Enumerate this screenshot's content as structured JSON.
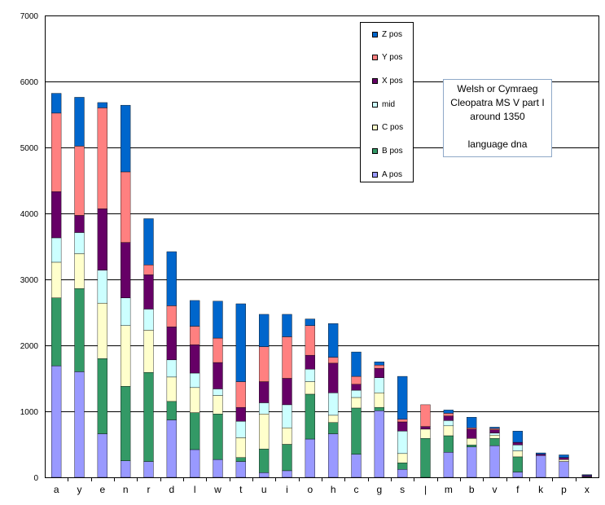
{
  "chart_data": {
    "type": "bar",
    "stacked": true,
    "categories": [
      "a",
      "y",
      "e",
      "n",
      "r",
      "d",
      "l",
      "w",
      "t",
      "u",
      "i",
      "o",
      "h",
      "c",
      "g",
      "s",
      "|",
      "m",
      "b",
      "v",
      "f",
      "k",
      "p",
      "x"
    ],
    "ylim": [
      0,
      7000
    ],
    "yticks": [
      "0",
      "1000",
      "2000",
      "3000",
      "4000",
      "5000",
      "6000",
      "7000"
    ],
    "grid": true,
    "legend_position": "top-center",
    "series": [
      {
        "name": "A pos",
        "color": "#9999ff",
        "values": [
          1690,
          1600,
          660,
          250,
          240,
          870,
          420,
          270,
          240,
          70,
          100,
          580,
          660,
          350,
          1010,
          120,
          0,
          380,
          460,
          480,
          80,
          330,
          240,
          0
        ]
      },
      {
        "name": "B pos",
        "color": "#339966",
        "values": [
          1030,
          1260,
          1140,
          1130,
          1350,
          280,
          560,
          690,
          60,
          360,
          400,
          680,
          170,
          700,
          50,
          100,
          590,
          250,
          30,
          110,
          230,
          0,
          0,
          10
        ]
      },
      {
        "name": "C pos",
        "color": "#ffffcc",
        "values": [
          540,
          530,
          840,
          920,
          640,
          370,
          380,
          280,
          300,
          530,
          250,
          190,
          110,
          160,
          220,
          140,
          140,
          150,
          100,
          50,
          90,
          0,
          30,
          0
        ]
      },
      {
        "name": "mid",
        "color": "#ccffff",
        "values": [
          370,
          320,
          500,
          420,
          320,
          260,
          220,
          100,
          250,
          170,
          350,
          190,
          340,
          110,
          230,
          340,
          0,
          80,
          0,
          30,
          90,
          0,
          0,
          0
        ]
      },
      {
        "name": "X pos",
        "color": "#660066",
        "values": [
          700,
          260,
          930,
          840,
          520,
          500,
          430,
          400,
          210,
          320,
          400,
          210,
          450,
          90,
          140,
          140,
          40,
          70,
          140,
          50,
          40,
          20,
          30,
          20
        ]
      },
      {
        "name": "Y pos",
        "color": "#ff8080",
        "values": [
          1190,
          1050,
          1530,
          1070,
          150,
          320,
          280,
          370,
          390,
          530,
          630,
          450,
          90,
          120,
          50,
          40,
          330,
          40,
          20,
          20,
          0,
          0,
          0,
          0
        ]
      },
      {
        "name": "Z pos",
        "color": "#0066cc",
        "values": [
          300,
          740,
          80,
          1010,
          700,
          820,
          390,
          560,
          1180,
          490,
          340,
          100,
          510,
          370,
          50,
          650,
          0,
          50,
          160,
          20,
          170,
          20,
          40,
          10
        ]
      }
    ]
  },
  "textbox": {
    "lines": [
      "Welsh or Cymraeg",
      "Cleopatra MS V part I",
      "around 1350",
      "",
      "language dna"
    ]
  }
}
